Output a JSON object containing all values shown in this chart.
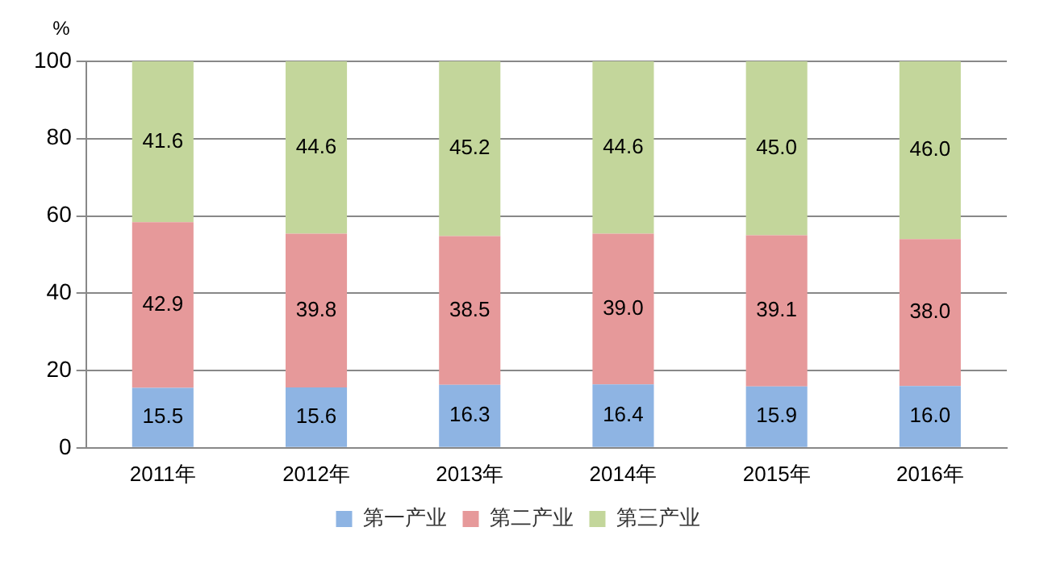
{
  "chart_data": {
    "type": "bar",
    "stacked": true,
    "ylabel": "%",
    "categories": [
      "2011年",
      "2012年",
      "2013年",
      "2014年",
      "2015年",
      "2016年"
    ],
    "series": [
      {
        "name": "第一产业",
        "color": "#8eb4e3",
        "values": [
          15.5,
          15.6,
          16.3,
          16.4,
          15.9,
          16.0
        ],
        "value_labels": [
          "15.5",
          "15.6",
          "16.3",
          "16.4",
          "15.9",
          "16.0"
        ]
      },
      {
        "name": "第二产业",
        "color": "#e6999a",
        "values": [
          42.9,
          39.8,
          38.5,
          39.0,
          39.1,
          38.0
        ],
        "value_labels": [
          "42.9",
          "39.8",
          "38.5",
          "39.0",
          "39.1",
          "38.0"
        ]
      },
      {
        "name": "第三产业",
        "color": "#c3d69b",
        "values": [
          41.6,
          44.6,
          45.2,
          44.6,
          45.0,
          46.0
        ],
        "value_labels": [
          "41.6",
          "44.6",
          "45.2",
          "44.6",
          "45.0",
          "46.0"
        ]
      }
    ],
    "ylim": [
      0,
      100
    ],
    "yticks": [
      0,
      20,
      40,
      60,
      80,
      100
    ],
    "grid": "y",
    "legend": "bottom"
  }
}
